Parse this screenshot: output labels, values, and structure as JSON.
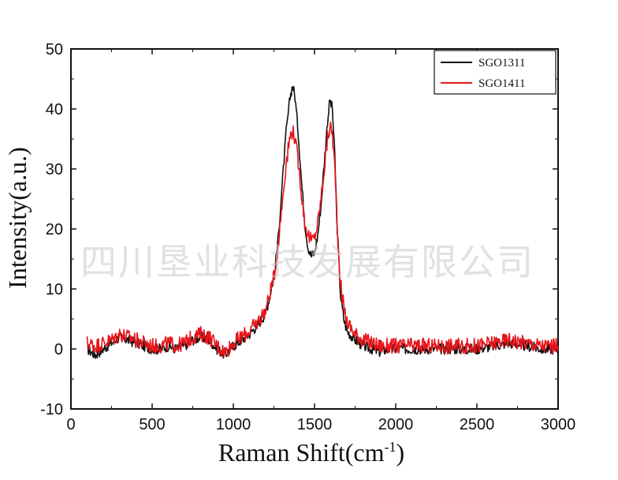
{
  "chart_data": {
    "type": "line",
    "xlabel": "Raman Shift(cm",
    "xlabel_sup": "-1",
    "xlabel_end": ")",
    "ylabel": "Intensity(a.u.)",
    "xlim": [
      0,
      3000
    ],
    "ylim": [
      -10,
      50
    ],
    "xticks": [
      0,
      500,
      1000,
      1500,
      2000,
      2500,
      3000
    ],
    "yticks": [
      -10,
      0,
      10,
      20,
      30,
      40,
      50
    ],
    "grid": false,
    "legend_position": "top-right",
    "series": [
      {
        "name": "SGO1311",
        "color": "#111111",
        "x": [
          100,
          150,
          200,
          250,
          300,
          350,
          400,
          450,
          500,
          550,
          600,
          650,
          700,
          750,
          800,
          850,
          900,
          950,
          1000,
          1050,
          1100,
          1150,
          1200,
          1250,
          1275,
          1300,
          1325,
          1350,
          1365,
          1380,
          1400,
          1420,
          1440,
          1460,
          1480,
          1500,
          1520,
          1540,
          1560,
          1580,
          1595,
          1610,
          1625,
          1640,
          1660,
          1680,
          1700,
          1750,
          1800,
          1850,
          1900,
          1950,
          2000,
          2100,
          2200,
          2300,
          2400,
          2500,
          2600,
          2700,
          2800,
          2900,
          3000
        ],
        "values": [
          0,
          -1,
          0,
          1,
          2,
          1.5,
          1,
          0.5,
          0,
          0,
          0.5,
          0,
          0.5,
          1.5,
          2,
          1.5,
          0,
          -1,
          0.5,
          1.5,
          2.5,
          4,
          6,
          12,
          18,
          27,
          36,
          42,
          44,
          42,
          36,
          28,
          21,
          17,
          15.5,
          16,
          19,
          24,
          31,
          38,
          41.5,
          40,
          32,
          20,
          9,
          5,
          3,
          1.5,
          0.5,
          0,
          -0.5,
          0,
          0,
          0,
          0,
          0,
          0,
          0,
          0.5,
          1,
          0.5,
          0,
          0
        ]
      },
      {
        "name": "SGO1411",
        "color": "#e8141a",
        "x": [
          100,
          150,
          200,
          250,
          300,
          350,
          400,
          450,
          500,
          550,
          600,
          650,
          700,
          750,
          800,
          850,
          900,
          950,
          1000,
          1050,
          1100,
          1150,
          1200,
          1250,
          1275,
          1300,
          1325,
          1350,
          1365,
          1380,
          1400,
          1420,
          1440,
          1460,
          1480,
          1500,
          1520,
          1540,
          1560,
          1580,
          1595,
          1610,
          1625,
          1640,
          1660,
          1680,
          1700,
          1750,
          1800,
          1850,
          1900,
          1950,
          2000,
          2100,
          2200,
          2300,
          2400,
          2500,
          2600,
          2700,
          2800,
          2900,
          3000
        ],
        "values": [
          1,
          0.5,
          1,
          1.5,
          2.5,
          2,
          1.5,
          1,
          0.5,
          0.5,
          1,
          0.5,
          1,
          2,
          2.5,
          2,
          0.5,
          -0.5,
          1,
          2,
          3,
          4.5,
          6.5,
          12,
          17,
          24,
          31,
          35.5,
          36.5,
          35,
          31,
          26,
          21,
          19,
          18,
          18.5,
          21,
          25,
          30,
          35,
          37,
          36,
          30,
          20,
          11,
          7,
          4.5,
          2.5,
          1.5,
          1,
          0.5,
          0.5,
          0.5,
          0.5,
          0.5,
          0.5,
          0.5,
          0.5,
          1,
          1.5,
          1,
          0.5,
          0.5
        ]
      }
    ]
  },
  "watermark": "四川垦业科技发展有限公司"
}
